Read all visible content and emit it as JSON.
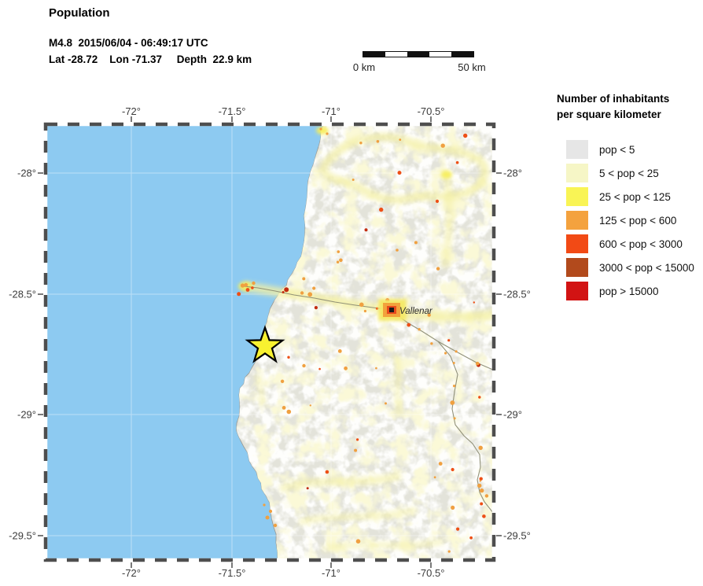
{
  "header": {
    "title": "Population",
    "info_line1": "M4.8  2015/06/04 - 06:49:17 UTC",
    "info_line2": "Lat -28.72    Lon -71.37     Depth  22.9 km"
  },
  "scalebar": {
    "label_start": "0 km",
    "label_end": "50 km",
    "segments": 5
  },
  "legend": {
    "title_line1": "Number of inhabitants",
    "title_line2": "per square kilometer",
    "items": [
      {
        "label": "pop < 5",
        "color": "#E6E6E6"
      },
      {
        "label": "5 < pop < 25",
        "color": "#F6F6C6"
      },
      {
        "label": "25 < pop < 125",
        "color": "#F9F455"
      },
      {
        "label": "125 < pop < 600",
        "color": "#F4A23E"
      },
      {
        "label": "600 < pop < 3000",
        "color": "#F24A15"
      },
      {
        "label": "3000 < pop < 15000",
        "color": "#B24A1C"
      },
      {
        "label": "pop > 15000",
        "color": "#D21313"
      }
    ]
  },
  "map": {
    "x_axis_labels": [
      "-72°",
      "-71.5°",
      "-71°",
      "-70.5°"
    ],
    "y_axis_labels": [
      "-28°",
      "-28.5°",
      "-29°",
      "-29.5°"
    ],
    "city": {
      "name": "Vallenar"
    },
    "epicenter": {
      "lat": -28.72,
      "lon": -71.37
    },
    "colors": {
      "ocean": "#8DCAF1",
      "land": "#E3E3DA",
      "white_patch": "#FCFCF9",
      "pale_yellow": "#F4F0A4",
      "bright_yellow": "#F7EE58",
      "orange": "#F0A040",
      "red_orange": "#EE4F16",
      "dark_red": "#C22C10",
      "road": "#8C8C74",
      "gridline": "#FFFFFF",
      "star_fill": "#F8F130",
      "frame_dash": "#4E4E4E",
      "city_core": "#1A1A1A",
      "city_inner": "#E8491C",
      "city_outer": "#F2A23C"
    }
  }
}
